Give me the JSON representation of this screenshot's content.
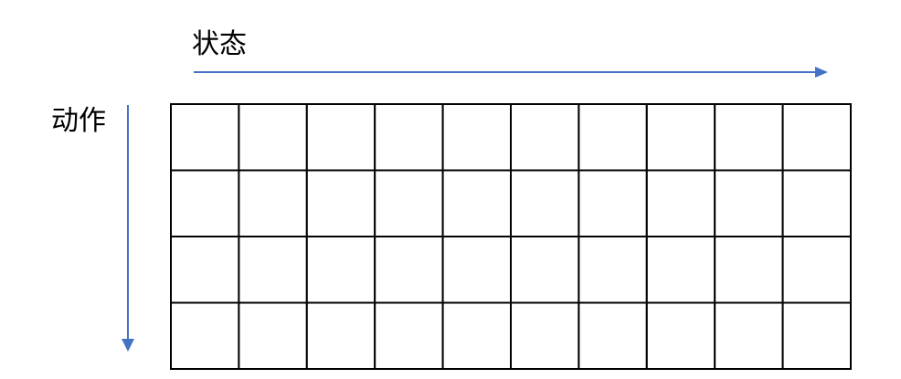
{
  "labels": {
    "state": "状态",
    "action": "动作"
  },
  "grid": {
    "columns": 10,
    "rows": 4
  },
  "colors": {
    "arrow": "#4472C4",
    "grid": "#000000"
  }
}
